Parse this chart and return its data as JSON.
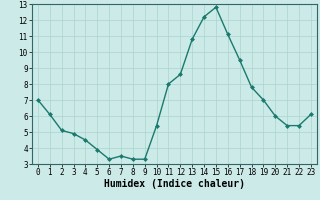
{
  "x": [
    0,
    1,
    2,
    3,
    4,
    5,
    6,
    7,
    8,
    9,
    10,
    11,
    12,
    13,
    14,
    15,
    16,
    17,
    18,
    19,
    20,
    21,
    22,
    23
  ],
  "y": [
    7.0,
    6.1,
    5.1,
    4.9,
    4.5,
    3.9,
    3.3,
    3.5,
    3.3,
    3.3,
    5.4,
    8.0,
    8.6,
    10.8,
    12.2,
    12.8,
    11.1,
    9.5,
    7.8,
    7.0,
    6.0,
    5.4,
    5.4,
    6.1
  ],
  "line_color": "#1a7a6e",
  "marker": "D",
  "marker_size": 2.0,
  "bg_color": "#cceae7",
  "grid_color": "#aad4d0",
  "xlabel": "Humidex (Indice chaleur)",
  "ylim": [
    3,
    13
  ],
  "xlim": [
    -0.5,
    23.5
  ],
  "yticks": [
    3,
    4,
    5,
    6,
    7,
    8,
    9,
    10,
    11,
    12,
    13
  ],
  "xticks": [
    0,
    1,
    2,
    3,
    4,
    5,
    6,
    7,
    8,
    9,
    10,
    11,
    12,
    13,
    14,
    15,
    16,
    17,
    18,
    19,
    20,
    21,
    22,
    23
  ],
  "tick_fontsize": 5.5,
  "xlabel_fontsize": 7.0,
  "line_width": 1.0
}
